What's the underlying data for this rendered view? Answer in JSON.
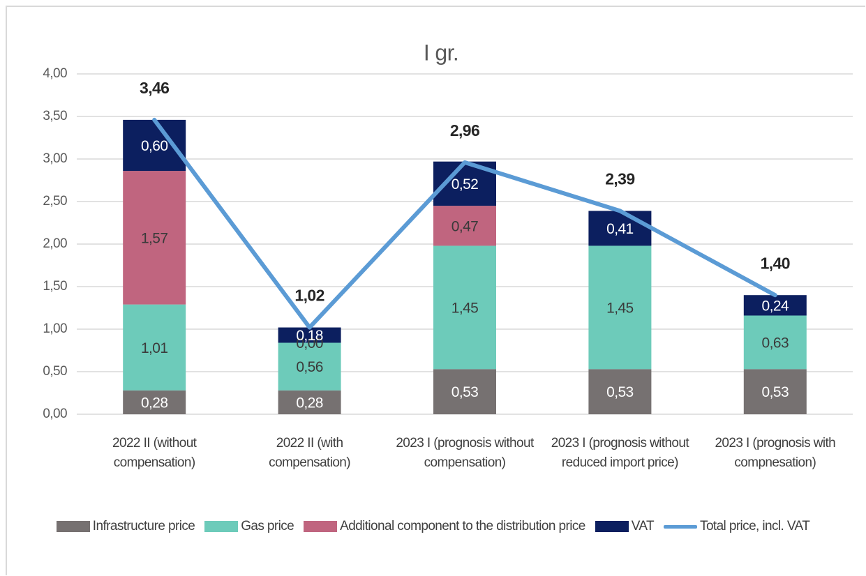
{
  "chart_data": {
    "type": "stacked-bar-line",
    "title": "I gr.",
    "categories": [
      "2022 II (without compensation)",
      "2022 II (with compensation)",
      "2023 I (prognosis without compensation)",
      "2023 I (prognosis without reduced import price)",
      "2023 I (prognosis with compnesation)"
    ],
    "series": [
      {
        "name": "Infrastructure price",
        "color": "#767171",
        "values": [
          0.28,
          0.28,
          0.53,
          0.53,
          0.53
        ],
        "value_labels": [
          "0,28",
          "0,28",
          "0,53",
          "0,53",
          "0,53"
        ]
      },
      {
        "name": "Gas price",
        "color": "#6dcbba",
        "values": [
          1.01,
          0.56,
          1.45,
          1.45,
          0.63
        ],
        "value_labels": [
          "1,01",
          "0,56",
          "1,45",
          "1,45",
          "0,63"
        ]
      },
      {
        "name": "Additional component to the distribution price",
        "color": "#c0657f",
        "values": [
          1.57,
          0,
          0.47,
          null,
          null
        ],
        "value_labels": [
          "1,57",
          "0,00",
          "0,47",
          null,
          null
        ]
      },
      {
        "name": "VAT",
        "color": "#0c1f5f",
        "values": [
          0.6,
          0.18,
          0.52,
          0.41,
          0.24
        ],
        "value_labels": [
          "0,60",
          "0,18",
          "0,52",
          "0,41",
          "0,24"
        ]
      },
      {
        "name": "Total price, incl. VAT",
        "type": "line",
        "color": "#5b9bd5",
        "values": [
          3.46,
          1.02,
          2.96,
          2.39,
          1.4
        ],
        "value_labels": [
          "3,46",
          "1,02",
          "2,96",
          "2,39",
          "1,40"
        ]
      }
    ],
    "ylim": [
      0,
      4
    ],
    "yticks": [
      {
        "value": 0,
        "label": "0,00"
      },
      {
        "value": 0.5,
        "label": "0,50"
      },
      {
        "value": 1,
        "label": "1,00"
      },
      {
        "value": 1.5,
        "label": "1,50"
      },
      {
        "value": 2,
        "label": "2,00"
      },
      {
        "value": 2.5,
        "label": "2,50"
      },
      {
        "value": 3,
        "label": "3,00"
      },
      {
        "value": 3.5,
        "label": "3,50"
      },
      {
        "value": 4,
        "label": "4,00"
      }
    ],
    "grid": true,
    "legend": "bottom"
  }
}
